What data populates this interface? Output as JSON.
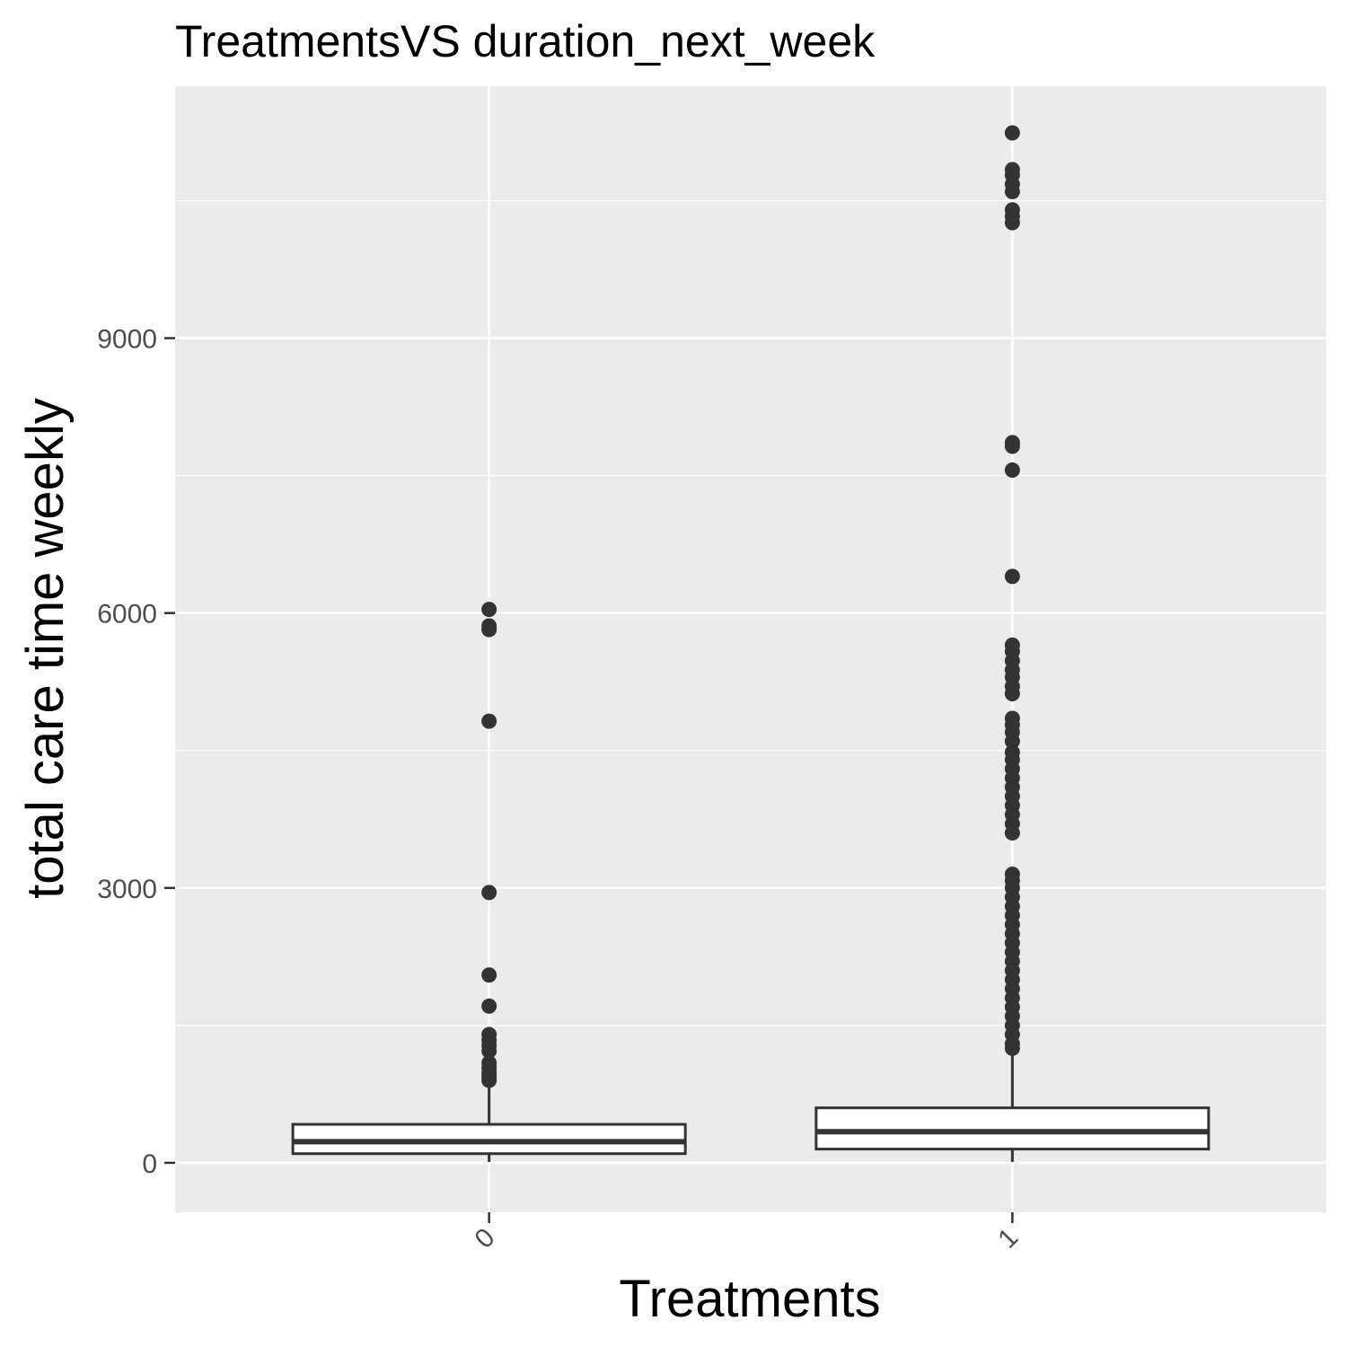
{
  "chart_data": {
    "type": "boxplot",
    "title": "TreatmentsVS duration_next_week",
    "xlabel": "Treatments",
    "ylabel": "total care time weekly",
    "categories": [
      "0",
      "1"
    ],
    "yticks": [
      0,
      3000,
      6000,
      9000
    ],
    "ytick_labels": [
      "0",
      "3000",
      "6000",
      "9000"
    ],
    "ylim": [
      -540,
      11750
    ],
    "grid": true,
    "colors": {
      "panel": "#ebebeb",
      "grid": "#ffffff",
      "box": "#333333",
      "tick": "#333333",
      "tick_label": "#4d4d4d"
    },
    "boxes": [
      {
        "category": "0",
        "q1": 100,
        "median": 230,
        "q3": 420,
        "whisker_low": 10,
        "whisker_high": 880,
        "outliers": [
          6040,
          5860,
          5820,
          4820,
          2950,
          2050,
          1710,
          1400,
          1340,
          1280,
          1220,
          1090,
          1040,
          990,
          960,
          930,
          900
        ]
      },
      {
        "category": "1",
        "q1": 150,
        "median": 340,
        "q3": 600,
        "whisker_low": 10,
        "whisker_high": 1220,
        "outliers": [
          11240,
          10840,
          10780,
          10680,
          10600,
          10400,
          10330,
          10260,
          7860,
          7820,
          7560,
          6400,
          5650,
          5580,
          5480,
          5380,
          5300,
          5200,
          5120,
          4850,
          4780,
          4700,
          4600,
          4480,
          4400,
          4300,
          4200,
          4100,
          4000,
          3900,
          3800,
          3700,
          3600,
          3150,
          3080,
          3000,
          2900,
          2800,
          2700,
          2600,
          2500,
          2400,
          2300,
          2200,
          2100,
          2000,
          1900,
          1800,
          1700,
          1600,
          1500,
          1400,
          1300,
          1250
        ]
      }
    ]
  }
}
